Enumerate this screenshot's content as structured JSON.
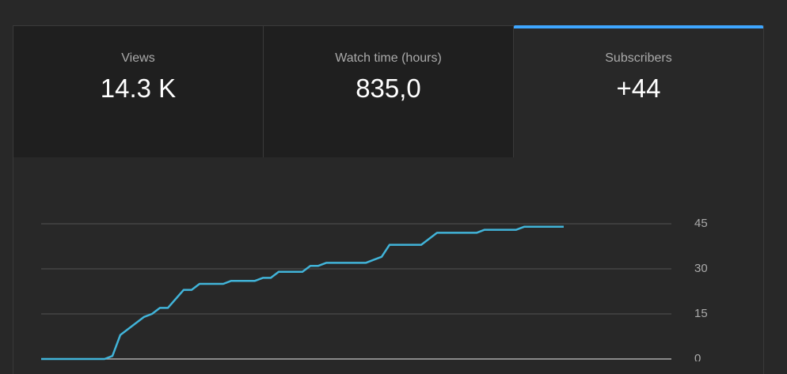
{
  "tabs": [
    {
      "label": "Views",
      "value": "14.3 K"
    },
    {
      "label": "Watch time (hours)",
      "value": "835,0"
    },
    {
      "label": "Subscribers",
      "value": "+44"
    }
  ],
  "chart_data": {
    "type": "line",
    "categories": [
      null,
      null,
      null,
      null,
      null,
      null,
      null,
      null,
      null,
      null,
      null,
      null,
      null,
      null,
      null,
      null,
      null,
      null,
      null,
      null,
      null,
      null,
      null,
      null,
      null,
      null,
      null,
      null,
      null,
      null,
      null,
      null,
      null,
      null,
      null,
      null,
      null,
      null,
      null,
      null,
      null,
      null,
      null,
      null,
      null,
      null,
      null,
      null,
      null,
      null,
      null,
      null,
      null,
      null,
      null,
      null,
      null,
      null,
      null,
      null,
      null,
      null,
      null,
      null,
      null,
      null,
      null
    ],
    "values": [
      0,
      0,
      0,
      0,
      0,
      0,
      0,
      0,
      0,
      1,
      8,
      10,
      12,
      14,
      15,
      17,
      17,
      20,
      23,
      23,
      25,
      25,
      25,
      25,
      26,
      26,
      26,
      26,
      27,
      27,
      29,
      29,
      29,
      29,
      31,
      31,
      32,
      32,
      32,
      32,
      32,
      32,
      33,
      34,
      38,
      38,
      38,
      38,
      38,
      40,
      42,
      42,
      42,
      42,
      42,
      42,
      43,
      43,
      43,
      43,
      43,
      44,
      44,
      44,
      44,
      44,
      44
    ],
    "color": "#41b4d9",
    "ylim": [
      0,
      45
    ],
    "yticks": [
      0,
      15,
      30,
      45
    ],
    "grid": true
  }
}
